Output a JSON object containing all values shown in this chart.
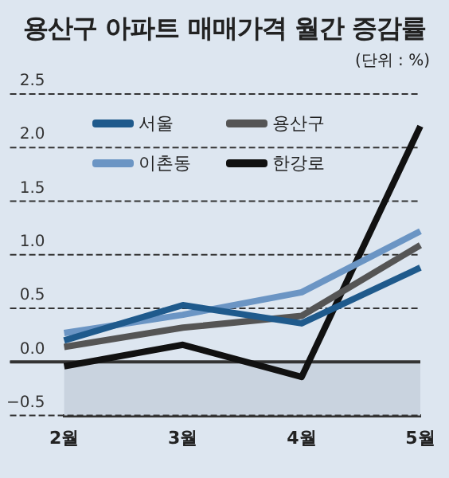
{
  "chart_data": {
    "type": "line",
    "title": "용산구 아파트 매매가격 월간 증감률",
    "subtitle": "(단위 : %)",
    "categories": [
      "2월",
      "3월",
      "4월",
      "5월"
    ],
    "series": [
      {
        "name": "서울",
        "color": "#1f5a8c",
        "values": [
          0.2,
          0.53,
          0.36,
          0.88
        ]
      },
      {
        "name": "용산구",
        "color": "#555555",
        "values": [
          0.14,
          0.32,
          0.43,
          1.09
        ]
      },
      {
        "name": "이촌동",
        "color": "#6b95c4",
        "values": [
          0.27,
          0.44,
          0.65,
          1.22
        ]
      },
      {
        "name": "한강로",
        "color": "#111111",
        "values": [
          -0.04,
          0.16,
          -0.14,
          2.2
        ]
      }
    ],
    "ylim": [
      -0.5,
      2.5
    ],
    "yticks": [
      {
        "value": -0.5,
        "label": "−0.5"
      },
      {
        "value": 0,
        "label": "0.0"
      },
      {
        "value": 0.5,
        "label": "0.5"
      },
      {
        "value": 1,
        "label": "1.0"
      },
      {
        "value": 1.5,
        "label": "1.5"
      },
      {
        "value": 2,
        "label": "2.0"
      },
      {
        "value": 2.5,
        "label": "2.5"
      }
    ],
    "grid": "y",
    "legend": "top left",
    "marker": "none",
    "bands": [
      {
        "axis": "y",
        "from": -0.5,
        "to": 0,
        "color": "#c9d3df"
      }
    ]
  }
}
